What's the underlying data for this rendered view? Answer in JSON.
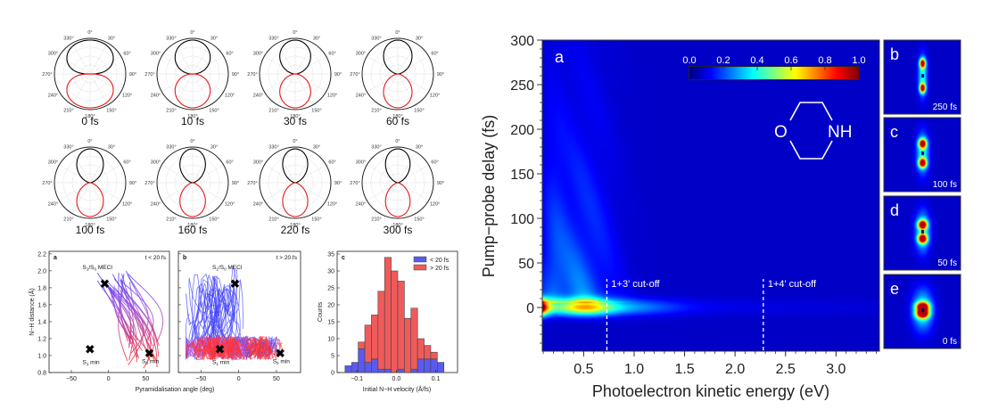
{
  "chart_data": [
    {
      "type": "polar",
      "panels": [
        {
          "label": "0 fs"
        },
        {
          "label": "10 fs"
        },
        {
          "label": "30 fs"
        },
        {
          "label": "60 fs"
        },
        {
          "label": "100 fs"
        },
        {
          "label": "160 fs"
        },
        {
          "label": "220 fs"
        },
        {
          "label": "300 fs"
        }
      ],
      "angle_ticks": [
        "0°",
        "30°",
        "60°",
        "90°",
        "120°",
        "150°",
        "180°",
        "210°",
        "240°",
        "270°",
        "300°",
        "330°"
      ],
      "series_colors": {
        "upper": "#000000",
        "lower": "#e41a1c"
      }
    },
    {
      "type": "line",
      "panel": "a",
      "annotation": "t < 20 fs",
      "xlabel": "Pyramidalisation angle (deg)",
      "ylabel": "N−H distance (Å)",
      "xlim": [
        -80,
        82
      ],
      "ylim": [
        0.8,
        2.23
      ],
      "xticks": [
        "−50",
        "0",
        "50"
      ],
      "yticks": [
        "0.8",
        "1.0",
        "1.2",
        "1.4",
        "1.6",
        "1.8",
        "2.0",
        "2.2"
      ],
      "markers": [
        {
          "label_main": "S",
          "label_sub": "1",
          "label_rest": "/S",
          "label_sub2": "0",
          "label_end": " MECI",
          "x": -5,
          "y": 1.84
        },
        {
          "label_main": "S",
          "label_sub": "1",
          "label_end": " min",
          "x": -25,
          "y": 1.07
        },
        {
          "label_main": "S",
          "label_sub": "0",
          "label_end": " min",
          "x": 55,
          "y": 1.02
        }
      ],
      "gradient_colors": [
        "#2b2bff",
        "#ff2020"
      ]
    },
    {
      "type": "line",
      "panel": "b",
      "annotation": "t > 20 fs",
      "xlim": [
        -80,
        82
      ],
      "ylim": [
        0.8,
        2.23
      ],
      "xticks": [
        "−50",
        "0",
        "50"
      ]
    },
    {
      "type": "bar",
      "panel": "c",
      "stacked": true,
      "xlabel": "Initial N−H velocity (Å/fs)",
      "ylabel": "Counts",
      "xlim": [
        -0.15,
        0.155
      ],
      "ylim": [
        0,
        35
      ],
      "xticks": [
        "−0.1",
        "0.0",
        "0.1"
      ],
      "yticks": [
        "0",
        "5",
        "10",
        "15",
        "20",
        "25",
        "30",
        "35"
      ],
      "bin_start": -0.13,
      "bin_width": 0.0167,
      "series": [
        {
          "name": "< 20 fs",
          "color": "#5a5af0",
          "values": [
            2,
            3,
            7,
            3,
            4,
            1,
            1,
            0,
            1,
            0,
            1,
            4,
            4,
            4,
            3
          ]
        },
        {
          "name": "> 20 fs",
          "color": "#f05a5a",
          "values": [
            0,
            0,
            2,
            11,
            13,
            23,
            33,
            30,
            26,
            16,
            18,
            6,
            4,
            2,
            0
          ]
        }
      ],
      "legend": "top-right"
    },
    {
      "type": "heatmap",
      "panel": "a",
      "xlabel": "Photoelectron kinetic energy (eV)",
      "ylabel": "Pump−probe delay (fs)",
      "xlim": [
        0.09,
        3.43
      ],
      "ylim": [
        -49,
        300
      ],
      "xticks": [
        "0.5",
        "1.0",
        "1.5",
        "2.0",
        "2.5",
        "3.0"
      ],
      "yticks": [
        "0",
        "50",
        "100",
        "150",
        "200",
        "250",
        "300"
      ],
      "colormap": "jet",
      "colorbar": {
        "range": [
          0,
          1
        ],
        "ticks": [
          "0.0",
          "0.2",
          "0.4",
          "0.6",
          "0.8",
          "1.0"
        ]
      },
      "peak": {
        "energy": 0.09,
        "delay": 0,
        "value": 1.0
      },
      "annotations": [
        {
          "text": "1+3' cut-off",
          "x": 0.73
        },
        {
          "text": "1+4' cut-off",
          "x": 2.28
        }
      ],
      "molecule": {
        "atom_left": "O",
        "atom_right": "NH"
      }
    },
    {
      "type": "image",
      "panels": [
        {
          "letter": "b",
          "label": "250 fs"
        },
        {
          "letter": "c",
          "label": "100 fs"
        },
        {
          "letter": "d",
          "label": "50 fs"
        },
        {
          "letter": "e",
          "label": "0 fs"
        }
      ]
    }
  ]
}
